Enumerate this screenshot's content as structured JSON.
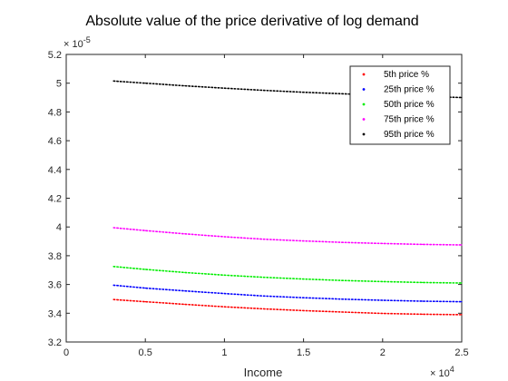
{
  "chart_data": {
    "type": "line",
    "title": "Absolute value of the price derivative of log demand",
    "xlabel": "Income",
    "ylabel": "",
    "xlim": [
      0,
      25000
    ],
    "ylim": [
      3.2e-05,
      5.2e-05
    ],
    "x_ticks": [
      0,
      5000,
      10000,
      15000,
      20000,
      25000
    ],
    "x_tick_labels": [
      "0",
      "0.5",
      "1",
      "1.5",
      "2",
      "2.5"
    ],
    "x_exponent_label": "× 10",
    "x_exponent_power": "4",
    "y_ticks": [
      3.2e-05,
      3.4e-05,
      3.6e-05,
      3.8e-05,
      4e-05,
      4.2e-05,
      4.4e-05,
      4.6e-05,
      4.8e-05,
      5e-05,
      5.2e-05
    ],
    "y_tick_labels": [
      "3.2",
      "3.4",
      "3.6",
      "3.8",
      "4",
      "4.2",
      "4.4",
      "4.6",
      "4.8",
      "5",
      "5.2"
    ],
    "y_exponent_label": "× 10",
    "y_exponent_power": "-5",
    "grid": false,
    "legend_position": "top-right",
    "line_style": "dotted",
    "x": [
      3000,
      5000,
      7500,
      10000,
      12500,
      15000,
      17500,
      20000,
      22500,
      25000
    ],
    "series": [
      {
        "name": "5th price %",
        "color": "#ff0000",
        "values": [
          3.495e-05,
          3.48e-05,
          3.462e-05,
          3.445e-05,
          3.43e-05,
          3.418e-05,
          3.408e-05,
          3.399e-05,
          3.393e-05,
          3.39e-05
        ]
      },
      {
        "name": "25th price %",
        "color": "#0000ff",
        "values": [
          3.595e-05,
          3.575e-05,
          3.555e-05,
          3.537e-05,
          3.52e-05,
          3.508e-05,
          3.498e-05,
          3.49e-05,
          3.484e-05,
          3.48e-05
        ]
      },
      {
        "name": "50th price %",
        "color": "#00ee00",
        "values": [
          3.725e-05,
          3.705e-05,
          3.683e-05,
          3.665e-05,
          3.65e-05,
          3.638e-05,
          3.628e-05,
          3.62e-05,
          3.614e-05,
          3.61e-05
        ]
      },
      {
        "name": "75th price %",
        "color": "#ff00ff",
        "values": [
          3.995e-05,
          3.975e-05,
          3.952e-05,
          3.932e-05,
          3.915e-05,
          3.903e-05,
          3.893e-05,
          3.885e-05,
          3.879e-05,
          3.875e-05
        ]
      },
      {
        "name": "95th price %",
        "color": "#000000",
        "values": [
          5.015e-05,
          5e-05,
          4.982e-05,
          4.965e-05,
          4.95e-05,
          4.937e-05,
          4.926e-05,
          4.916e-05,
          4.908e-05,
          4.9e-05
        ]
      }
    ]
  }
}
